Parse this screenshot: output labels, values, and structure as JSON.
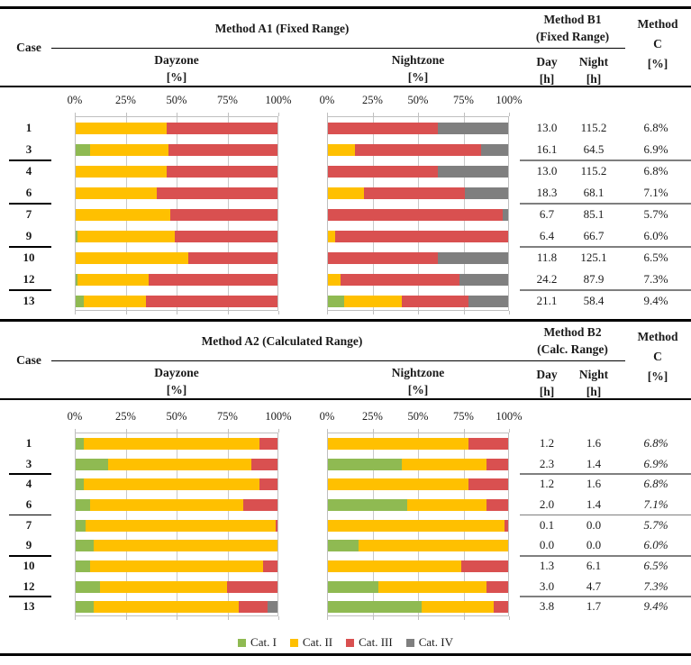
{
  "colors": {
    "cat1": "#8FBA52",
    "cat2": "#FFC000",
    "cat3": "#D95050",
    "cat4": "#7F7F7F",
    "grid": "#C9C9C9",
    "separator_right": "#7F7F7F",
    "separator_case": "#000000"
  },
  "axis_ticks": [
    "0%",
    "25%",
    "50%",
    "75%",
    "100%"
  ],
  "legend": [
    {
      "label": "Cat. I",
      "key": "cat1"
    },
    {
      "label": "Cat. II",
      "key": "cat2"
    },
    {
      "label": "Cat. III",
      "key": "cat3"
    },
    {
      "label": "Cat. IV",
      "key": "cat4"
    }
  ],
  "sections": [
    {
      "case_label": "Case",
      "title": "Method A1 (Fixed Range)",
      "b_line1": "Method B1",
      "b_line2": "(Fixed Range)",
      "c_line1": "Method",
      "c_line2": "C",
      "c_line3": "[%]",
      "dayzone_label": "Dayzone",
      "nightzone_label": "Nightzone",
      "pct_label": "[%]",
      "day_label": "Day",
      "night_label": "Night",
      "hour_label": "[h]",
      "c_italic": false,
      "rows": [
        {
          "case": "1",
          "day_h": "13.0",
          "night_h": "115.2",
          "c": "6.8%",
          "sep": false
        },
        {
          "case": "3",
          "day_h": "16.1",
          "night_h": "64.5",
          "c": "6.9%",
          "sep": true
        },
        {
          "case": "4",
          "day_h": "13.0",
          "night_h": "115.2",
          "c": "6.8%",
          "sep": false
        },
        {
          "case": "6",
          "day_h": "18.3",
          "night_h": "68.1",
          "c": "7.1%",
          "sep": true
        },
        {
          "case": "7",
          "day_h": "6.7",
          "night_h": "85.1",
          "c": "5.7%",
          "sep": false
        },
        {
          "case": "9",
          "day_h": "6.4",
          "night_h": "66.7",
          "c": "6.0%",
          "sep": true
        },
        {
          "case": "10",
          "day_h": "11.8",
          "night_h": "125.1",
          "c": "6.5%",
          "sep": false
        },
        {
          "case": "12",
          "day_h": "24.2",
          "night_h": "87.9",
          "c": "7.3%",
          "sep": true
        },
        {
          "case": "13",
          "day_h": "21.1",
          "night_h": "58.4",
          "c": "9.4%",
          "sep": false
        }
      ]
    },
    {
      "case_label": "Case",
      "title": "Method A2 (Calculated Range)",
      "b_line1": "Method B2",
      "b_line2": "(Calc. Range)",
      "c_line1": "Method",
      "c_line2": "C",
      "c_line3": "[%]",
      "dayzone_label": "Dayzone",
      "nightzone_label": "Nightzone",
      "pct_label": "[%]",
      "day_label": "Day",
      "night_label": "Night",
      "hour_label": "[h]",
      "c_italic": true,
      "rows": [
        {
          "case": "1",
          "day_h": "1.2",
          "night_h": "1.6",
          "c": "6.8%",
          "sep": false
        },
        {
          "case": "3",
          "day_h": "2.3",
          "night_h": "1.4",
          "c": "6.9%",
          "sep": true
        },
        {
          "case": "4",
          "day_h": "1.2",
          "night_h": "1.6",
          "c": "6.8%",
          "sep": false
        },
        {
          "case": "6",
          "day_h": "2.0",
          "night_h": "1.4",
          "c": "7.1%",
          "sep": true
        },
        {
          "case": "7",
          "day_h": "0.1",
          "night_h": "0.0",
          "c": "5.7%",
          "sep": false
        },
        {
          "case": "9",
          "day_h": "0.0",
          "night_h": "0.0",
          "c": "6.0%",
          "sep": true
        },
        {
          "case": "10",
          "day_h": "1.3",
          "night_h": "6.1",
          "c": "6.5%",
          "sep": false
        },
        {
          "case": "12",
          "day_h": "3.0",
          "night_h": "4.7",
          "c": "7.3%",
          "sep": true
        },
        {
          "case": "13",
          "day_h": "3.8",
          "night_h": "1.7",
          "c": "9.4%",
          "sep": false
        }
      ]
    }
  ],
  "chart_data": [
    {
      "type": "bar",
      "stacked": true,
      "orientation": "horizontal",
      "title": "Method A1 (Fixed Range) - Dayzone [%]",
      "categories": [
        "1",
        "3",
        "4",
        "6",
        "7",
        "9",
        "10",
        "12",
        "13"
      ],
      "xlim": [
        0,
        100
      ],
      "xticks": [
        "0%",
        "25%",
        "50%",
        "75%",
        "100%"
      ],
      "grid": true,
      "series": [
        {
          "name": "Cat. I",
          "values": [
            0,
            7,
            0,
            0,
            0,
            1,
            0,
            1,
            4
          ]
        },
        {
          "name": "Cat. II",
          "values": [
            45,
            39,
            45,
            40,
            47,
            48,
            56,
            35,
            31
          ]
        },
        {
          "name": "Cat. III",
          "values": [
            55,
            54,
            55,
            60,
            53,
            51,
            44,
            64,
            65
          ]
        },
        {
          "name": "Cat. IV",
          "values": [
            0,
            0,
            0,
            0,
            0,
            0,
            0,
            0,
            0
          ]
        }
      ]
    },
    {
      "type": "bar",
      "stacked": true,
      "orientation": "horizontal",
      "title": "Method A1 (Fixed Range) - Nightzone [%]",
      "categories": [
        "1",
        "3",
        "4",
        "6",
        "7",
        "9",
        "10",
        "12",
        "13"
      ],
      "xlim": [
        0,
        100
      ],
      "xticks": [
        "0%",
        "25%",
        "50%",
        "75%",
        "100%"
      ],
      "grid": true,
      "series": [
        {
          "name": "Cat. I",
          "values": [
            0,
            0,
            0,
            0,
            0,
            0,
            0,
            0,
            9
          ]
        },
        {
          "name": "Cat. II",
          "values": [
            0,
            15,
            0,
            20,
            0,
            4,
            0,
            7,
            32
          ]
        },
        {
          "name": "Cat. III",
          "values": [
            61,
            70,
            61,
            56,
            97,
            96,
            61,
            66,
            37
          ]
        },
        {
          "name": "Cat. IV",
          "values": [
            39,
            15,
            39,
            24,
            3,
            0,
            39,
            27,
            22
          ]
        }
      ]
    },
    {
      "type": "bar",
      "stacked": true,
      "orientation": "horizontal",
      "title": "Method A2 (Calculated Range) - Dayzone [%]",
      "categories": [
        "1",
        "3",
        "4",
        "6",
        "7",
        "9",
        "10",
        "12",
        "13"
      ],
      "xlim": [
        0,
        100
      ],
      "xticks": [
        "0%",
        "25%",
        "50%",
        "75%",
        "100%"
      ],
      "grid": true,
      "series": [
        {
          "name": "Cat. I",
          "values": [
            4,
            16,
            4,
            7,
            5,
            9,
            7,
            12,
            9
          ]
        },
        {
          "name": "Cat. II",
          "values": [
            87,
            71,
            87,
            76,
            94,
            91,
            86,
            63,
            72
          ]
        },
        {
          "name": "Cat. III",
          "values": [
            9,
            13,
            9,
            17,
            1,
            0,
            7,
            25,
            14
          ]
        },
        {
          "name": "Cat. IV",
          "values": [
            0,
            0,
            0,
            0,
            0,
            0,
            0,
            0,
            5
          ]
        }
      ]
    },
    {
      "type": "bar",
      "stacked": true,
      "orientation": "horizontal",
      "title": "Method A2 (Calculated Range) - Nightzone [%]",
      "categories": [
        "1",
        "3",
        "4",
        "6",
        "7",
        "9",
        "10",
        "12",
        "13"
      ],
      "xlim": [
        0,
        100
      ],
      "xticks": [
        "0%",
        "25%",
        "50%",
        "75%",
        "100%"
      ],
      "grid": true,
      "series": [
        {
          "name": "Cat. I",
          "values": [
            0,
            41,
            0,
            44,
            0,
            17,
            0,
            28,
            52
          ]
        },
        {
          "name": "Cat. II",
          "values": [
            78,
            47,
            78,
            44,
            98,
            83,
            74,
            60,
            40
          ]
        },
        {
          "name": "Cat. III",
          "values": [
            22,
            12,
            22,
            12,
            2,
            0,
            26,
            12,
            8
          ]
        },
        {
          "name": "Cat. IV",
          "values": [
            0,
            0,
            0,
            0,
            0,
            0,
            0,
            0,
            0
          ]
        }
      ]
    }
  ]
}
